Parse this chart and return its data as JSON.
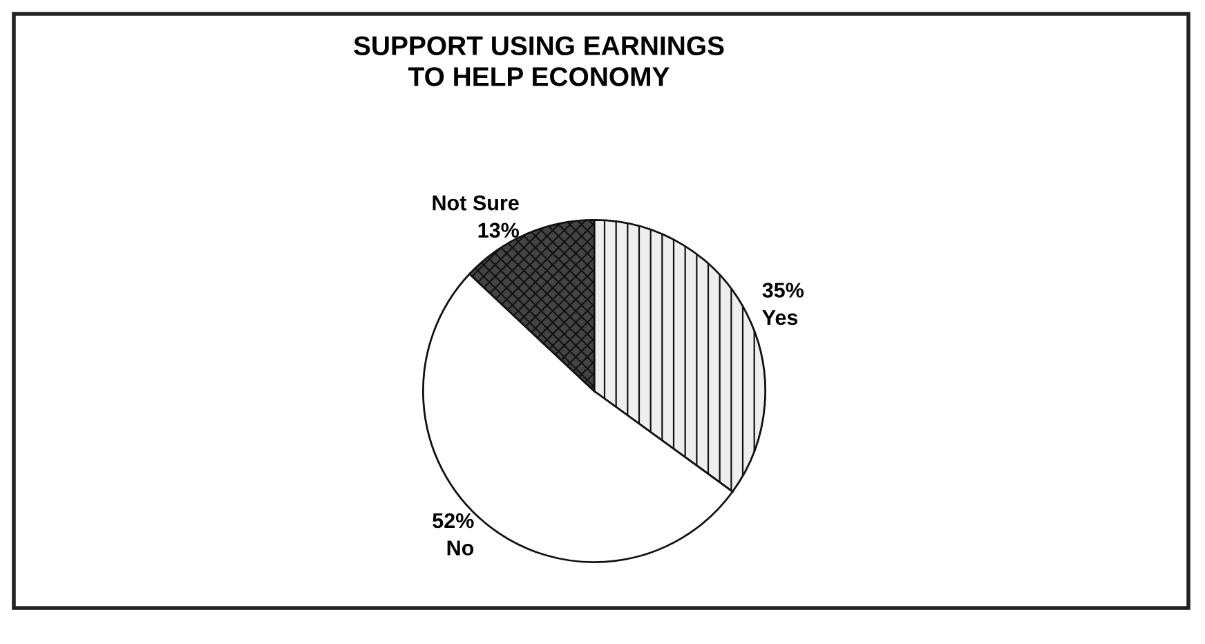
{
  "chart_data": {
    "type": "pie",
    "title": "SUPPORT USING EARNINGS\nTO HELP ECONOMY",
    "categories": [
      "Yes",
      "No",
      "Not Sure"
    ],
    "values": [
      35,
      52,
      13
    ],
    "value_labels": [
      "35%",
      "52%",
      "13%"
    ],
    "colors": [
      "#eeeeee",
      "#ffffff",
      "#444444"
    ],
    "legend": false
  }
}
